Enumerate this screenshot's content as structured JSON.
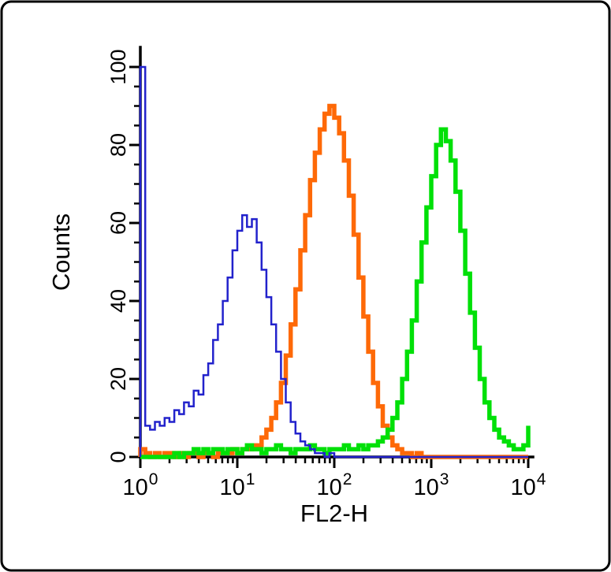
{
  "figure": {
    "background": "#ffffff",
    "border_color": "#000000"
  },
  "chart_data": {
    "type": "line",
    "chart_kind": "flow cytometry histogram overlay (step curves)",
    "title": "",
    "xlabel": "FL2-H",
    "ylabel": "Counts",
    "legend": "none",
    "grid": false,
    "x_axis": {
      "scale": "log10",
      "lim_log10": [
        0,
        4
      ],
      "major_tick_base": "10",
      "major_tick_exponents": [
        "0",
        "1",
        "2",
        "3",
        "4"
      ],
      "minor_tick_mantissas": [
        2,
        3,
        4,
        5,
        6,
        7,
        8,
        9
      ]
    },
    "y_axis": {
      "lim": [
        0,
        100
      ],
      "major_ticks": [
        0,
        20,
        40,
        60,
        80,
        100
      ],
      "minor_tick_step": 5
    },
    "x_start_log10": 0,
    "x_step_log10": 0.05,
    "series": [
      {
        "name": "orange-histogram",
        "color": "#fe6907",
        "stroke_width": 5.5,
        "peak_x_approx": 90,
        "peak_count_approx": 90,
        "counts": [
          2,
          1,
          0,
          1,
          0,
          1,
          1,
          0,
          1,
          0,
          1,
          1,
          0,
          1,
          1,
          0,
          1,
          1,
          1,
          2,
          1,
          2,
          2,
          3,
          3,
          5,
          7,
          10,
          14,
          19,
          26,
          34,
          43,
          53,
          62,
          71,
          78,
          84,
          88,
          90,
          87,
          83,
          76,
          67,
          57,
          46,
          36,
          27,
          19,
          13,
          8,
          5,
          3,
          2,
          1,
          1,
          0,
          1,
          0,
          0,
          0,
          0,
          0,
          0,
          0,
          0,
          0,
          0,
          0,
          0,
          0,
          0,
          0,
          0,
          0,
          0,
          0,
          0,
          0,
          0,
          0
        ]
      },
      {
        "name": "green-histogram",
        "color": "#00e008",
        "stroke_width": 5.5,
        "peak_x_approx": 1300,
        "peak_count_approx": 84,
        "counts": [
          0,
          0,
          0,
          0,
          0,
          0,
          0,
          1,
          0,
          1,
          1,
          2,
          1,
          2,
          1,
          2,
          2,
          1,
          2,
          2,
          1,
          2,
          3,
          2,
          2,
          1,
          2,
          2,
          3,
          2,
          2,
          1,
          2,
          2,
          2,
          3,
          2,
          2,
          1,
          2,
          2,
          2,
          3,
          2,
          2,
          3,
          2,
          3,
          3,
          4,
          5,
          7,
          10,
          14,
          20,
          27,
          35,
          45,
          55,
          64,
          72,
          80,
          84,
          81,
          76,
          68,
          58,
          47,
          37,
          28,
          20,
          14,
          10,
          7,
          5,
          4,
          3,
          2,
          2,
          3,
          8
        ]
      },
      {
        "name": "blue-histogram",
        "color": "#2222cc",
        "stroke_width": 2.5,
        "peak_x_approx": 10,
        "peak_count_approx": 62,
        "edge_spike_at_x1_count": 100,
        "counts": [
          100,
          8,
          7,
          9,
          8,
          10,
          9,
          12,
          11,
          14,
          13,
          17,
          16,
          21,
          24,
          30,
          34,
          40,
          46,
          53,
          58,
          62,
          59,
          61,
          55,
          48,
          41,
          34,
          27,
          20,
          14,
          9,
          6,
          4,
          3,
          2,
          1,
          1,
          0,
          1,
          0,
          0,
          0,
          0,
          0,
          0,
          0,
          0,
          0,
          0,
          0,
          0,
          0,
          0,
          0,
          0,
          0,
          0,
          0,
          0,
          0,
          0,
          0,
          0,
          0,
          0,
          0,
          0,
          0,
          0,
          0,
          0,
          0,
          0,
          0,
          0,
          0,
          0,
          0,
          0,
          0
        ]
      }
    ]
  }
}
